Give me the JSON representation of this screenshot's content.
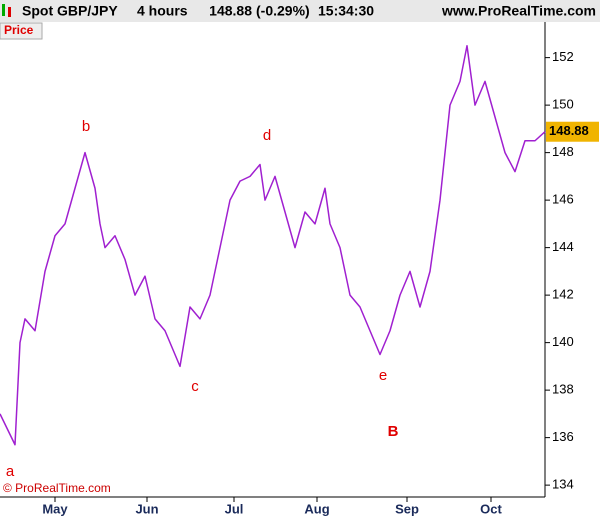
{
  "header": {
    "instrument": "Spot GBP/JPY",
    "timeframe": "4 hours",
    "change": "(-0.29%)",
    "time": "15:34:30",
    "site": "www.ProRealTime.com"
  },
  "panel_label": "Price",
  "footer": "© ProRealTime.com",
  "chart_data": {
    "type": "line",
    "x": [
      0,
      15,
      20,
      25,
      35,
      45,
      55,
      65,
      75,
      85,
      95,
      100,
      105,
      115,
      125,
      135,
      145,
      155,
      165,
      175,
      180,
      190,
      200,
      210,
      220,
      230,
      240,
      250,
      260,
      265,
      275,
      285,
      295,
      305,
      315,
      325,
      330,
      340,
      350,
      360,
      370,
      380,
      390,
      400,
      410,
      420,
      430,
      440,
      450,
      460,
      467,
      475,
      485,
      495,
      505,
      515,
      525,
      535,
      545
    ],
    "series": [
      {
        "name": "Price",
        "color": "#a020d0",
        "values": [
          137,
          135.7,
          140,
          141,
          140.5,
          143,
          144.5,
          145,
          146.5,
          148,
          146.5,
          145,
          144,
          144.5,
          143.5,
          142,
          142.8,
          141,
          140.5,
          139.5,
          139,
          141.5,
          141,
          142,
          144,
          146,
          146.8,
          147,
          147.5,
          146,
          147,
          145.5,
          144,
          145.5,
          145,
          146.5,
          145,
          144,
          142,
          141.5,
          140.5,
          139.5,
          140.5,
          142,
          143,
          141.5,
          143,
          146,
          150,
          151,
          152.5,
          150,
          151,
          149.5,
          148,
          147.2,
          148.5,
          148.5,
          148.88
        ]
      }
    ],
    "last_price": 148.88,
    "xlim": [
      0,
      545
    ],
    "xticks": [
      {
        "value": 55,
        "label": "May"
      },
      {
        "value": 147,
        "label": "Jun"
      },
      {
        "value": 234,
        "label": "Jul"
      },
      {
        "value": 317,
        "label": "Aug"
      },
      {
        "value": 407,
        "label": "Sep"
      },
      {
        "value": 491,
        "label": "Oct"
      }
    ],
    "ylim": [
      133.5,
      153.5
    ],
    "yticks": [
      134,
      136,
      138,
      140,
      142,
      144,
      146,
      148,
      150,
      152
    ],
    "annotations": [
      "a",
      "b",
      "c",
      "d",
      "e",
      "B"
    ]
  }
}
